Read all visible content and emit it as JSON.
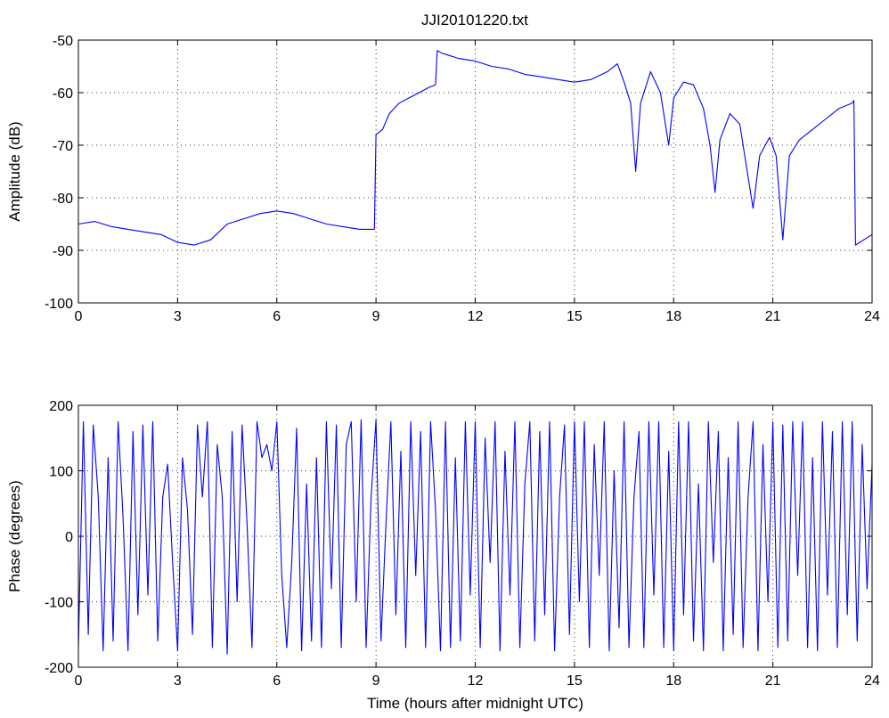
{
  "figure_title": "JJI20101220.txt",
  "chart_data": [
    {
      "type": "line",
      "title": "JJI20101220.txt",
      "xlabel": "",
      "ylabel": "Amplitude (dB)",
      "xlim": [
        0,
        24
      ],
      "ylim": [
        -100,
        -50
      ],
      "x_ticks": [
        0,
        3,
        6,
        9,
        12,
        15,
        18,
        21,
        24
      ],
      "y_ticks": [
        -100,
        -90,
        -80,
        -70,
        -60,
        -50
      ],
      "grid": true,
      "line_color": "#0000ff",
      "series": [
        {
          "x": [
            0,
            0.5,
            1,
            1.5,
            2,
            2.5,
            3,
            3.5,
            4,
            4.5,
            5,
            5.5,
            6,
            6.5,
            7,
            7.5,
            8,
            8.5,
            8.95,
            9.0,
            9.2,
            9.4,
            9.7,
            10,
            10.3,
            10.6,
            10.8,
            10.85,
            11,
            11.5,
            12,
            12.5,
            13,
            13.5,
            14,
            14.5,
            15,
            15.5,
            16,
            16.3,
            16.5,
            16.7,
            16.85,
            17,
            17.3,
            17.6,
            17.85,
            18,
            18.3,
            18.6,
            18.9,
            19.1,
            19.25,
            19.4,
            19.7,
            20,
            20.2,
            20.4,
            20.6,
            20.9,
            21.1,
            21.3,
            21.5,
            21.8,
            22.2,
            22.6,
            23,
            23.4,
            23.45,
            23.5,
            24
          ],
          "y": [
            -85,
            -84.5,
            -85.5,
            -86,
            -86.5,
            -87,
            -88.5,
            -89,
            -88,
            -85,
            -84,
            -83,
            -82.5,
            -83,
            -84,
            -85,
            -85.5,
            -86,
            -86,
            -68,
            -67,
            -64,
            -62,
            -61,
            -60,
            -59,
            -58.5,
            -52,
            -52.5,
            -53.5,
            -54,
            -55,
            -55.5,
            -56.5,
            -57,
            -57.5,
            -58,
            -57.5,
            -56,
            -54.5,
            -58,
            -62,
            -75,
            -62,
            -56,
            -60,
            -70,
            -61,
            -58,
            -58.5,
            -63,
            -70,
            -79,
            -69,
            -64,
            -66,
            -74,
            -82,
            -72,
            -68.5,
            -72,
            -88,
            -72,
            -69,
            -67,
            -65,
            -63,
            -62,
            -61.5,
            -89,
            -87
          ]
        }
      ]
    },
    {
      "type": "line",
      "title": "",
      "xlabel": "Time (hours after midnight UTC)",
      "ylabel": "Phase (degrees)",
      "xlim": [
        0,
        24
      ],
      "ylim": [
        -200,
        200
      ],
      "x_ticks": [
        0,
        3,
        6,
        9,
        12,
        15,
        18,
        21,
        24
      ],
      "y_ticks": [
        -200,
        -100,
        0,
        100,
        200
      ],
      "grid": true,
      "line_color": "#0000ff",
      "series": [
        {
          "x": [
            0,
            0.15,
            0.3,
            0.45,
            0.6,
            0.75,
            0.9,
            1.05,
            1.2,
            1.35,
            1.5,
            1.65,
            1.8,
            1.95,
            2.1,
            2.25,
            2.4,
            2.55,
            2.7,
            2.85,
            3.0,
            3.15,
            3.3,
            3.45,
            3.6,
            3.75,
            3.9,
            4.05,
            4.2,
            4.35,
            4.5,
            4.65,
            4.8,
            4.95,
            5.1,
            5.25,
            5.4,
            5.55,
            5.7,
            5.85,
            6.0,
            6.15,
            6.3,
            6.45,
            6.6,
            6.75,
            6.9,
            7.05,
            7.2,
            7.35,
            7.5,
            7.65,
            7.8,
            7.95,
            8.1,
            8.25,
            8.4,
            8.55,
            8.7,
            8.85,
            9.0,
            9.15,
            9.3,
            9.45,
            9.6,
            9.75,
            9.9,
            10.05,
            10.2,
            10.35,
            10.5,
            10.65,
            10.8,
            10.95,
            11.1,
            11.25,
            11.4,
            11.55,
            11.7,
            11.85,
            12.0,
            12.15,
            12.3,
            12.45,
            12.6,
            12.75,
            12.9,
            13.05,
            13.2,
            13.35,
            13.5,
            13.65,
            13.8,
            13.95,
            14.1,
            14.25,
            14.4,
            14.55,
            14.7,
            14.85,
            15.0,
            15.15,
            15.3,
            15.45,
            15.6,
            15.75,
            15.9,
            16.05,
            16.2,
            16.35,
            16.5,
            16.65,
            16.8,
            16.95,
            17.1,
            17.25,
            17.4,
            17.55,
            17.7,
            17.85,
            18.0,
            18.15,
            18.3,
            18.45,
            18.6,
            18.75,
            18.9,
            19.05,
            19.2,
            19.35,
            19.5,
            19.65,
            19.8,
            19.95,
            20.1,
            20.25,
            20.4,
            20.55,
            20.7,
            20.85,
            21.0,
            21.15,
            21.3,
            21.45,
            21.6,
            21.75,
            21.9,
            22.05,
            22.2,
            22.35,
            22.5,
            22.65,
            22.8,
            22.95,
            23.1,
            23.25,
            23.4,
            23.55,
            23.7,
            23.85,
            24.0
          ],
          "y": [
            -170,
            175,
            -150,
            170,
            60,
            -175,
            120,
            -160,
            175,
            30,
            -175,
            160,
            -120,
            170,
            -90,
            175,
            -160,
            60,
            110,
            -40,
            -175,
            120,
            40,
            -150,
            170,
            60,
            175,
            -170,
            140,
            60,
            -180,
            160,
            -100,
            170,
            20,
            -170,
            175,
            120,
            140,
            100,
            175,
            -60,
            -170,
            -40,
            165,
            -175,
            80,
            -160,
            120,
            -170,
            175,
            -80,
            170,
            -170,
            140,
            175,
            -100,
            178,
            -170,
            60,
            178,
            -160,
            20,
            175,
            -120,
            130,
            -170,
            175,
            -60,
            160,
            -170,
            175,
            40,
            -175,
            175,
            -170,
            120,
            -160,
            175,
            -90,
            175,
            -170,
            150,
            -40,
            175,
            -175,
            130,
            -90,
            175,
            -170,
            80,
            175,
            -160,
            160,
            -120,
            175,
            -175,
            60,
            170,
            -150,
            175,
            -100,
            175,
            -170,
            140,
            -60,
            175,
            -175,
            100,
            -140,
            175,
            -170,
            60,
            160,
            -170,
            175,
            -90,
            175,
            -170,
            130,
            -175,
            175,
            -120,
            175,
            -160,
            80,
            -175,
            175,
            -40,
            160,
            -175,
            120,
            -150,
            175,
            -170,
            60,
            175,
            -175,
            140,
            -100,
            175,
            -170,
            170,
            -160,
            175,
            -60,
            175,
            -170,
            120,
            -175,
            175,
            -90,
            160,
            -170,
            175,
            -120,
            175,
            -160,
            140,
            -80,
            110
          ]
        }
      ]
    }
  ]
}
